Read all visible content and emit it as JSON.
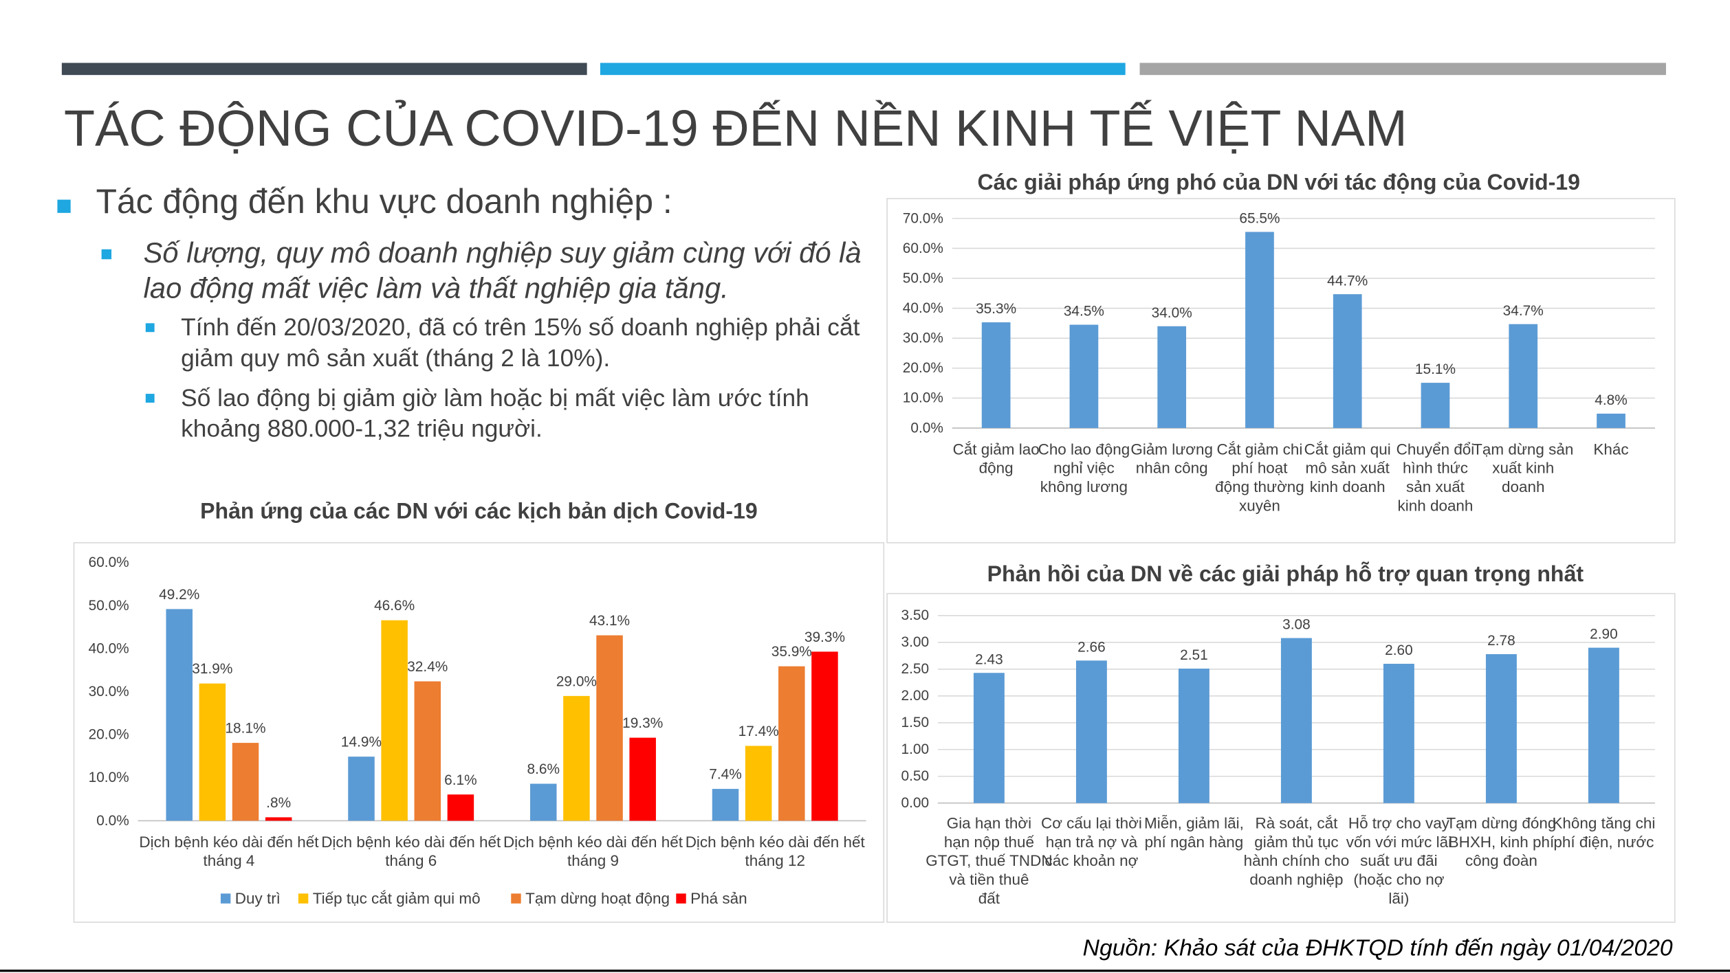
{
  "title": "TÁC ĐỘNG CỦA COVID-19 ĐẾN NỀN KINH TẾ VIỆT NAM",
  "bullets": [
    {
      "level": 1,
      "text": "Tác động đến khu vực doanh nghiệp :"
    },
    {
      "level": 2,
      "text": "Số lượng, quy mô doanh nghiệp suy giảm cùng với đó là lao động mất việc làm và thất nghiệp gia tăng."
    },
    {
      "level": 3,
      "text": "Tính đến 20/03/2020, đã có trên 15% số doanh nghiệp phải cắt giảm quy mô sản xuất (tháng 2 là 10%)."
    },
    {
      "level": 3,
      "text": "Số lao động bị giảm giờ làm hoặc bị mất việc làm ước tính khoảng 880.000-1,32 triệu người."
    }
  ],
  "source": "Nguồn: Khảo sát của ĐHKTQD tính đến ngày 01/04/2020",
  "chart_data": [
    {
      "type": "bar",
      "title": "Các giải pháp ứng phó của DN với tác động của Covid-19",
      "categories": [
        "Cắt giảm lao động",
        "Cho lao động nghỉ việc không lương",
        "Giảm lương nhân công",
        "Cắt giảm chi phí hoạt động thường xuyên",
        "Cắt giảm qui mô sản xuất kinh doanh",
        "Chuyển đổi hình thức sản xuất kinh doanh",
        "Tạm dừng sản xuất kinh doanh",
        "Khác"
      ],
      "values": [
        35.3,
        34.5,
        34.0,
        65.5,
        44.7,
        15.1,
        34.7,
        4.8
      ],
      "value_labels": [
        "35.3%",
        "34.5%",
        "34.0%",
        "65.5%",
        "44.7%",
        "15.1%",
        "34.7%",
        "4.8%"
      ],
      "color": "#5b9bd5",
      "grid": true,
      "ylim": [
        0,
        70
      ],
      "yticks": [
        {
          "value": 0,
          "label": "0.0%"
        },
        {
          "value": 10,
          "label": "10.0%"
        },
        {
          "value": 20,
          "label": "20.0%"
        },
        {
          "value": 30,
          "label": "30.0%"
        },
        {
          "value": 40,
          "label": "40.0%"
        },
        {
          "value": 50,
          "label": "50.0%"
        },
        {
          "value": 60,
          "label": "60.0%"
        },
        {
          "value": 70,
          "label": "70.0%"
        }
      ]
    },
    {
      "type": "grouped_bar",
      "title": "Phản ứng của các DN với các kịch bản dịch Covid-19",
      "categories": [
        "Dịch bệnh kéo dài đến hết tháng 4",
        "Dịch bệnh kéo dài đến hết tháng 6",
        "Dịch bệnh kéo dài đến hết tháng 9",
        "Dịch bệnh kéo dài đến hết tháng 12"
      ],
      "series": [
        {
          "name": "Duy trì",
          "color": "#5b9bd5",
          "values": [
            49.2,
            14.9,
            8.6,
            7.4
          ],
          "value_labels": [
            "49.2%",
            "14.9%",
            "8.6%",
            "7.4%"
          ]
        },
        {
          "name": "Tiếp tục cắt giảm qui mô",
          "color": "#ffc000",
          "values": [
            31.9,
            46.6,
            29.0,
            17.4
          ],
          "value_labels": [
            "31.9%",
            "46.6%",
            "29.0%",
            "17.4%"
          ]
        },
        {
          "name": "Tạm dừng hoạt động",
          "color": "#ed7d31",
          "values": [
            18.1,
            32.4,
            43.1,
            35.9
          ],
          "value_labels": [
            "18.1%",
            "32.4%",
            "43.1%",
            "35.9%"
          ]
        },
        {
          "name": "Phá sản",
          "color": "#ff0000",
          "values": [
            0.8,
            6.1,
            19.3,
            39.3
          ],
          "value_labels": [
            ".8%",
            "6.1%",
            "19.3%",
            "39.3%"
          ]
        }
      ],
      "legend": "bottom",
      "grid": false,
      "ylim": [
        0,
        60
      ],
      "yticks": [
        {
          "value": 0,
          "label": "0.0%"
        },
        {
          "value": 10,
          "label": "10.0%"
        },
        {
          "value": 20,
          "label": "20.0%"
        },
        {
          "value": 30,
          "label": "30.0%"
        },
        {
          "value": 40,
          "label": "40.0%"
        },
        {
          "value": 50,
          "label": "50.0%"
        },
        {
          "value": 60,
          "label": "60.0%"
        }
      ]
    },
    {
      "type": "bar",
      "title": "Phản hồi của DN về các giải pháp hỗ trợ quan trọng nhất",
      "categories": [
        "Gia hạn thời hạn nộp thuế GTGT, thuế TNDN và tiền thuê đất",
        "Cơ cấu lại thời hạn trả nợ và các khoản nợ",
        "Miễn, giảm lãi, phí ngân hàng",
        "Rà soát, cắt giảm thủ tục hành chính cho doanh nghiệp",
        "Hỗ trợ cho vay vốn với mức lãi suất ưu đãi (hoặc cho nợ lãi)",
        "Tạm dừng đóng BHXH, kinh phí công đoàn",
        "Không tăng chi phí điện, nước"
      ],
      "values": [
        2.43,
        2.66,
        2.51,
        3.08,
        2.6,
        2.78,
        2.9
      ],
      "value_labels": [
        "2.43",
        "2.66",
        "2.51",
        "3.08",
        "2.60",
        "2.78",
        "2.90"
      ],
      "color": "#5b9bd5",
      "grid": true,
      "ylim": [
        0,
        3.5
      ],
      "yticks": [
        {
          "value": 0,
          "label": "0.00"
        },
        {
          "value": 0.5,
          "label": "0.50"
        },
        {
          "value": 1,
          "label": "1.00"
        },
        {
          "value": 1.5,
          "label": "1.50"
        },
        {
          "value": 2,
          "label": "2.00"
        },
        {
          "value": 2.5,
          "label": "2.50"
        },
        {
          "value": 3,
          "label": "3.00"
        },
        {
          "value": 3.5,
          "label": "3.50"
        }
      ]
    }
  ]
}
